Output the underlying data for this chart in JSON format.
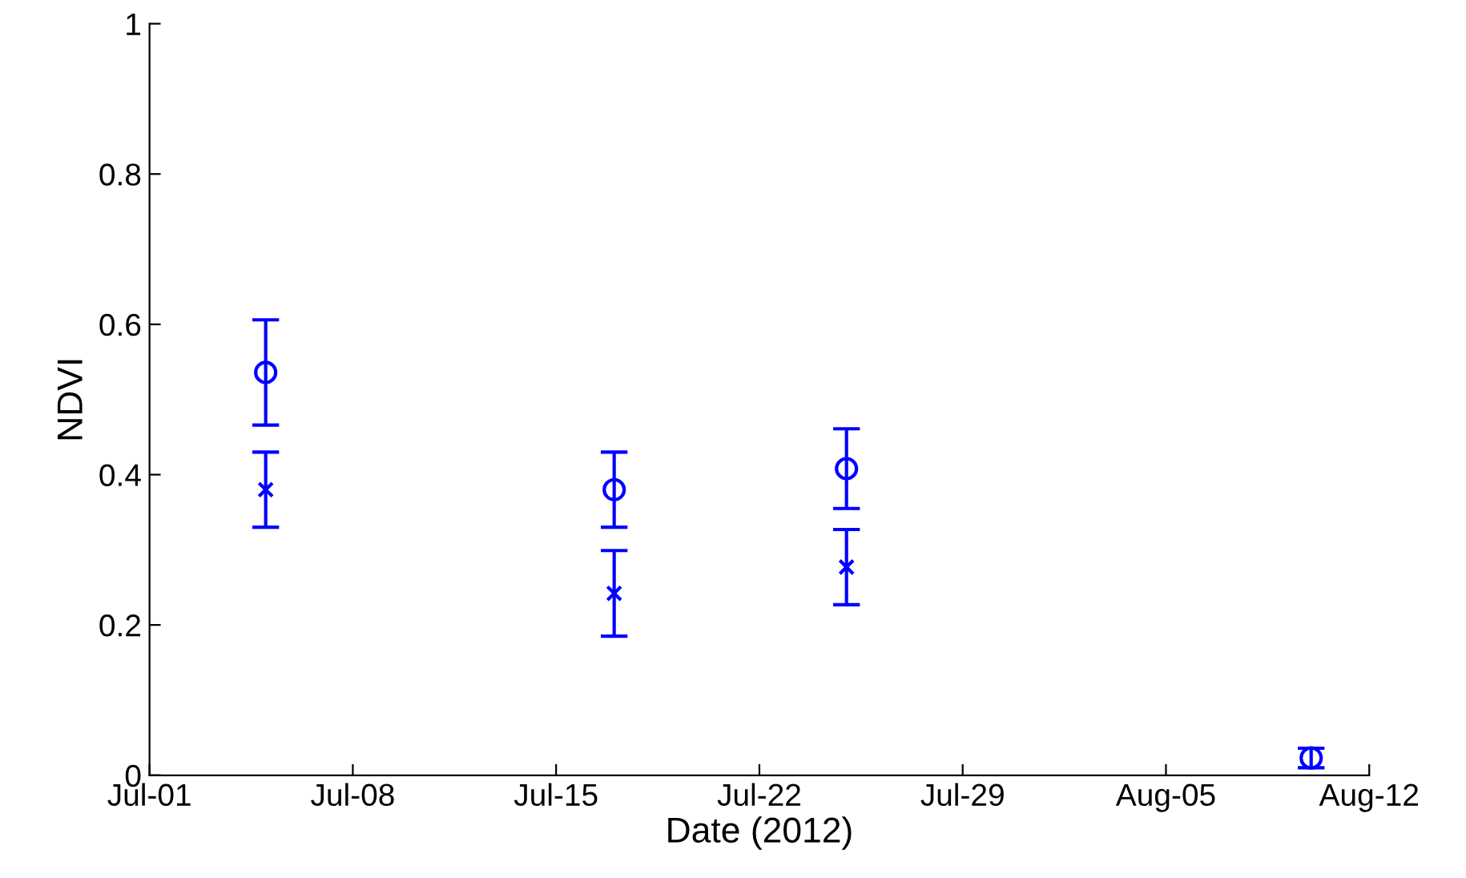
{
  "chart_data": {
    "type": "scatter",
    "xlabel": "Date (2012)",
    "ylabel": "NDVI",
    "x": [
      "2012-07-05",
      "2012-07-17",
      "2012-07-25",
      "2012-08-10"
    ],
    "series": [
      {
        "color": "#0000ff",
        "marker": "circle",
        "values": [
          0.536,
          0.38,
          0.408,
          0.023
        ],
        "errors": [
          0.07,
          0.05,
          0.053,
          0.013
        ]
      },
      {
        "color": "#0000ff",
        "marker": "cross",
        "values": [
          0.38,
          0.242,
          0.277,
          null
        ],
        "errors": [
          0.05,
          0.057,
          0.05,
          null
        ]
      }
    ],
    "xlim": [
      "2012-07-01",
      "2012-08-12"
    ],
    "xticks": [
      {
        "value": "2012-07-01",
        "label": "Jul-01"
      },
      {
        "value": "2012-07-08",
        "label": "Jul-08"
      },
      {
        "value": "2012-07-15",
        "label": "Jul-15"
      },
      {
        "value": "2012-07-22",
        "label": "Jul-22"
      },
      {
        "value": "2012-07-29",
        "label": "Jul-29"
      },
      {
        "value": "2012-08-05",
        "label": "Aug-05"
      },
      {
        "value": "2012-08-12",
        "label": "Aug-12"
      }
    ],
    "ylim": [
      0,
      1
    ],
    "yticks": [
      0,
      0.2,
      0.4,
      0.6,
      0.8,
      1
    ],
    "grid": false,
    "legend": false
  }
}
